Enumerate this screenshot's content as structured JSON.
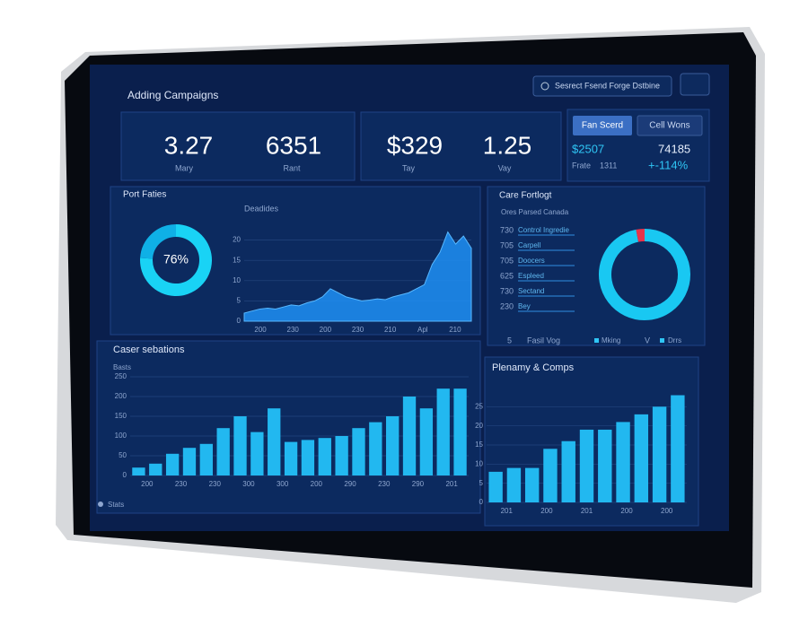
{
  "header": {
    "title": "Adding Campaigns",
    "search": "Sesrect Fsend Forge Dstbine"
  },
  "kpis": [
    {
      "value": "3.27",
      "label": "Mary"
    },
    {
      "value": "6351",
      "label": "Rant"
    },
    {
      "value": "$329",
      "label": "Tay"
    },
    {
      "value": "1.25",
      "label": "Vay"
    }
  ],
  "side_panel": {
    "buttons": [
      "Fan Scerd",
      "Cell Wons"
    ],
    "amount": "$2507",
    "amount_label": "Frate",
    "amount_sub": "1311",
    "count": "74185",
    "change": "+-114%"
  },
  "donut_panel": {
    "title": "Port Faties"
  },
  "list_panel": {
    "title": "Care Fortlogt",
    "header": "Ores Parsed Canada",
    "rows": [
      [
        "730",
        "Control Ingredie"
      ],
      [
        "705",
        "Carpell"
      ],
      [
        "705",
        "Doocers"
      ],
      [
        "625",
        "Espleed"
      ],
      [
        "730",
        "Sectand"
      ],
      [
        "230",
        "Bey"
      ]
    ],
    "legend": [
      "5",
      "Fasil Vog",
      "Mking",
      "V",
      "Drrs"
    ]
  },
  "bar_panel": {
    "title": "Caser sebations",
    "footer": "Stats"
  },
  "bar2_panel": {
    "title": "Plenamy & Comps"
  },
  "chart_data": [
    {
      "type": "pie",
      "values": [
        76,
        24
      ],
      "colors": [
        "#19d3f5",
        "#0fb0e6"
      ],
      "label": "76%"
    },
    {
      "type": "area",
      "title": "Deadides",
      "color": "#1e8ff5",
      "values": [
        2,
        2.5,
        3,
        3.2,
        3,
        3.5,
        4,
        3.8,
        4.5,
        5,
        6,
        8,
        7,
        6,
        5.5,
        5,
        5.2,
        5.5,
        5.3,
        6,
        6.5,
        7,
        8,
        9,
        14,
        17,
        22,
        19,
        21,
        18
      ],
      "x_labels": [
        "200",
        "230",
        "200",
        "230",
        "210",
        "Apl",
        "210"
      ],
      "ylim": [
        0,
        25
      ],
      "yticks": [
        0,
        5,
        10,
        15,
        20
      ],
      "grid": true
    },
    {
      "type": "pie",
      "values": [
        97,
        3
      ],
      "colors": [
        "#19c8f2",
        "#e8324a"
      ]
    },
    {
      "type": "bar",
      "ylabel": "Basts",
      "color": "#22b8f0",
      "values": [
        20,
        30,
        55,
        70,
        80,
        120,
        150,
        110,
        170,
        85,
        90,
        95,
        100,
        120,
        135,
        150,
        200,
        170,
        220,
        220
      ],
      "x_labels": [
        "200",
        "230",
        "230",
        "300",
        "300",
        "200",
        "290",
        "230",
        "290",
        "201"
      ],
      "ylim": [
        0,
        250
      ],
      "yticks": [
        0,
        50,
        100,
        150,
        200,
        250
      ],
      "grid": true
    },
    {
      "type": "bar",
      "color": "#22b8f0",
      "values": [
        8,
        9,
        9,
        14,
        16,
        19,
        19,
        21,
        23,
        25,
        28
      ],
      "x_labels": [
        "201",
        "200",
        "201",
        "200",
        "200"
      ],
      "ylim": [
        0,
        30
      ],
      "yticks": [
        0,
        5,
        10,
        15,
        20,
        25
      ],
      "grid": true
    }
  ]
}
